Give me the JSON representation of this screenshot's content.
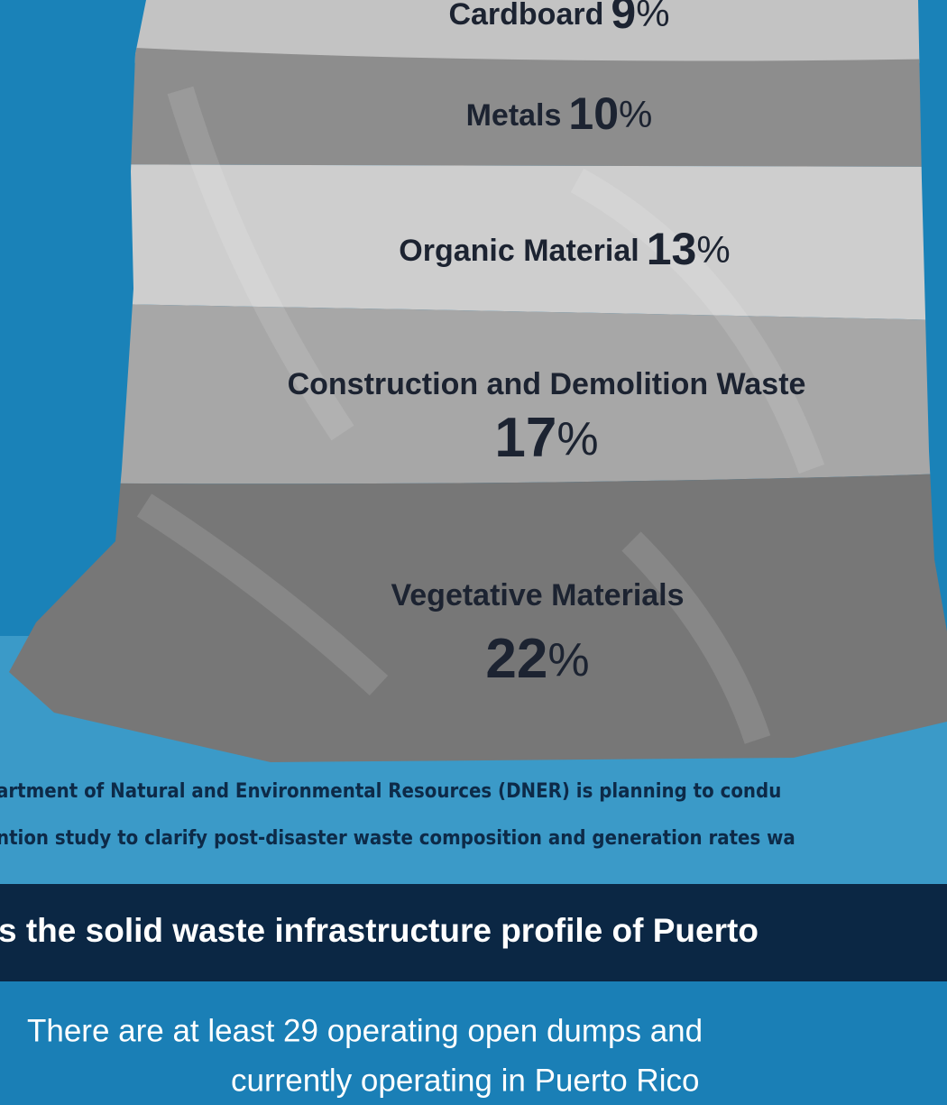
{
  "segments": [
    {
      "label": "Cardboard",
      "value": "9",
      "unit": "%"
    },
    {
      "label": "Metals",
      "value": "10",
      "unit": "%"
    },
    {
      "label": "Organic Material",
      "value": "13",
      "unit": "%"
    },
    {
      "label": "Construction and Demolition Waste",
      "value": "17",
      "unit": "%"
    },
    {
      "label": "Vegetative Materials",
      "value": "22",
      "unit": "%"
    }
  ],
  "note": [
    "artment of Natural and Environmental Resources (DNER) is planning to condu",
    "ntion study to clarify post-disaster waste composition and generation rates wa"
  ],
  "banner": "s the solid waste infrastructure profile of Puerto",
  "body": [
    "There are at least 29 operating open dumps and",
    "currently operating in Puerto Rico"
  ]
}
